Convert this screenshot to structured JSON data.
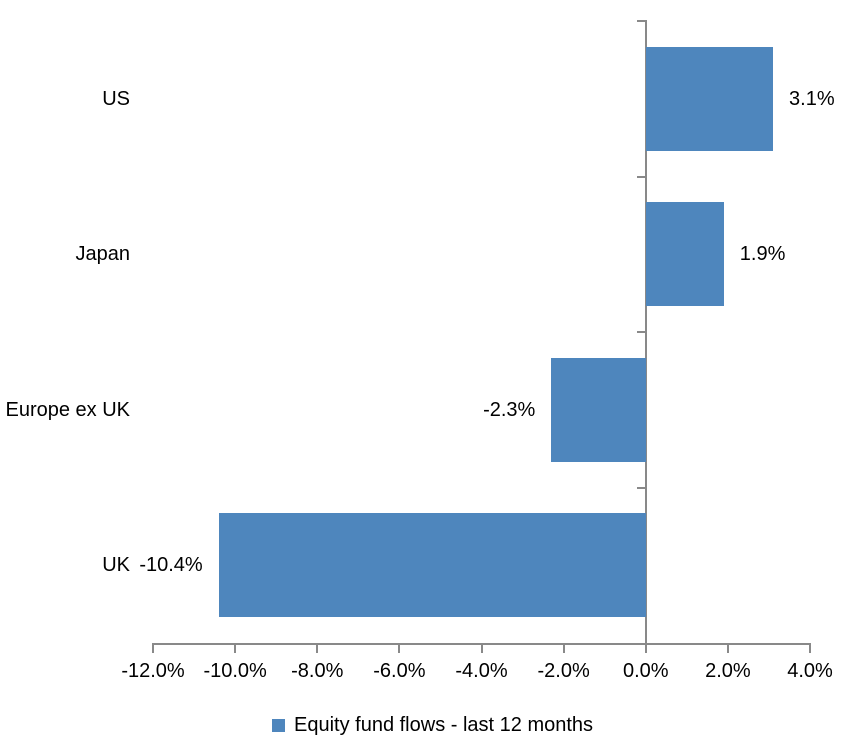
{
  "chart_data": {
    "type": "bar",
    "orientation": "horizontal",
    "title": "",
    "categories": [
      "US",
      "Japan",
      "Europe ex UK",
      "UK"
    ],
    "series": [
      {
        "name": "Equity fund flows - last 12 months",
        "values": [
          3.1,
          1.9,
          -2.3,
          -10.4
        ],
        "data_labels": [
          "3.1%",
          "1.9%",
          "-2.3%",
          "-10.4%"
        ]
      }
    ],
    "xlim": [
      -12,
      4
    ],
    "x_ticks": [
      -12,
      -10,
      -8,
      -6,
      -4,
      -2,
      0,
      2,
      4
    ],
    "x_tick_labels": [
      "-12.0%",
      "-10.0%",
      "-8.0%",
      "-6.0%",
      "-4.0%",
      "-2.0%",
      "0.0%",
      "2.0%",
      "4.0%"
    ],
    "grid": false,
    "legend_position": "bottom",
    "legend": [
      {
        "label": "Equity fund flows - last 12 months",
        "color": "#4E86BD"
      }
    ],
    "colors": {
      "bar": "#4E86BD",
      "axis": "#898989",
      "text": "#000000",
      "background": "#FFFFFF"
    }
  }
}
